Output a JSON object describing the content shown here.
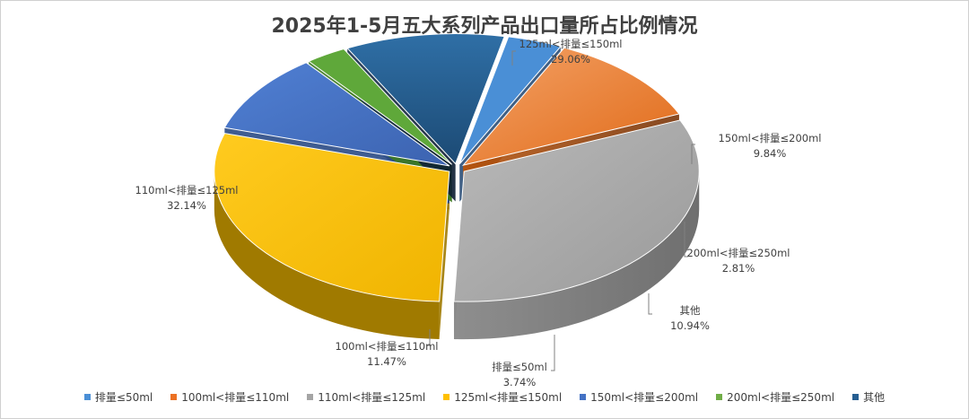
{
  "chart_data": {
    "type": "pie",
    "title": "2025年1-5月五大系列产品出口量所占比例情况",
    "series": [
      {
        "name": "排量≤50ml",
        "value": 3.74,
        "label": "3.74%",
        "color": "#4a8fd6"
      },
      {
        "name": "100ml<排量≤110ml",
        "value": 11.47,
        "label": "11.47%",
        "color": "#ec7123"
      },
      {
        "name": "110ml<排量≤125ml",
        "value": 32.14,
        "label": "32.14%",
        "color": "#a5a5a5"
      },
      {
        "name": "125ml<排量≤150ml",
        "value": 29.06,
        "label": "29.06%",
        "color": "#ffc000"
      },
      {
        "name": "150ml<排量≤200ml",
        "value": 9.84,
        "label": "9.84%",
        "color": "#4472c4"
      },
      {
        "name": "200ml<排量≤250ml",
        "value": 2.81,
        "label": "2.81%",
        "color": "#70ad47"
      },
      {
        "name": "其他",
        "value": 10.94,
        "label": "10.94%",
        "color": "#255e91"
      }
    ],
    "legend_position": "bottom",
    "style": "3d-exploded"
  }
}
